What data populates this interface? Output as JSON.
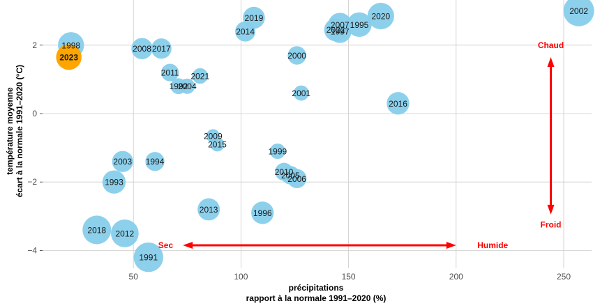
{
  "chart_data": {
    "type": "scatter",
    "x_label_lines": [
      "précipitations",
      "rapport à la normale 1991–2020 (%)"
    ],
    "y_label_lines": [
      "température moyenne",
      "écart à la normale 1991–2020 (°C)"
    ],
    "xlim": [
      0,
      260
    ],
    "ylim": [
      -4.5,
      3.3
    ],
    "x_ticks": [
      50,
      100,
      150,
      200,
      250
    ],
    "y_ticks": [
      -4,
      -2,
      0,
      2
    ],
    "tick_labels": {
      "x": [
        "50",
        "100",
        "150",
        "200",
        "250"
      ],
      "y": [
        "−4",
        "−2",
        "0",
        "2"
      ]
    },
    "grid": true,
    "colors": {
      "point": "#87ceeb",
      "highlight": "#ffa500",
      "highlight_label": "#ff0000",
      "annotation": "#ff0000",
      "grid": "#cccccc"
    },
    "points": [
      {
        "year": "1991",
        "x": 57,
        "y": -4.2
      },
      {
        "year": "1993",
        "x": 41,
        "y": -2.0
      },
      {
        "year": "1994",
        "x": 60,
        "y": -1.4
      },
      {
        "year": "1995",
        "x": 155,
        "y": 2.6
      },
      {
        "year": "1996",
        "x": 110,
        "y": -2.9
      },
      {
        "year": "1997",
        "x": 146,
        "y": 2.4
      },
      {
        "year": "1998",
        "x": 21,
        "y": 2.0
      },
      {
        "year": "1999",
        "x": 117,
        "y": -1.1
      },
      {
        "year": "2000",
        "x": 126,
        "y": 1.7
      },
      {
        "year": "2001",
        "x": 128,
        "y": 0.6
      },
      {
        "year": "2002",
        "x": 257,
        "y": 3.0
      },
      {
        "year": "2003",
        "x": 45,
        "y": -1.4
      },
      {
        "year": "2004",
        "x": 75,
        "y": 0.8
      },
      {
        "year": "2005",
        "x": 123,
        "y": -1.8
      },
      {
        "year": "2006",
        "x": 126,
        "y": -1.9
      },
      {
        "year": "2007",
        "x": 146,
        "y": 2.6
      },
      {
        "year": "2008",
        "x": 54,
        "y": 1.9
      },
      {
        "year": "2009",
        "x": 87,
        "y": -0.65
      },
      {
        "year": "2010",
        "x": 120,
        "y": -1.7
      },
      {
        "year": "2011",
        "x": 67,
        "y": 1.2
      },
      {
        "year": "2012",
        "x": 46,
        "y": -3.5
      },
      {
        "year": "2013",
        "x": 85,
        "y": -2.8
      },
      {
        "year": "2014",
        "x": 102,
        "y": 2.4
      },
      {
        "year": "2015",
        "x": 89,
        "y": -0.9
      },
      {
        "year": "2016",
        "x": 173,
        "y": 0.3
      },
      {
        "year": "2017",
        "x": 63,
        "y": 1.9
      },
      {
        "year": "2018",
        "x": 33,
        "y": -3.4
      },
      {
        "year": "2019",
        "x": 106,
        "y": 2.8
      },
      {
        "year": "2020",
        "x": 165,
        "y": 2.85
      },
      {
        "year": "2021",
        "x": 81,
        "y": 1.1
      },
      {
        "year": "2022",
        "x": 144,
        "y": 2.45
      },
      {
        "year": "1992",
        "x": 71,
        "y": 0.8
      },
      {
        "year": "2023",
        "x": 20,
        "y": 1.65,
        "highlight": true
      }
    ],
    "annotations": {
      "dry": "Sec",
      "wet": "Humide",
      "hot": "Chaud",
      "cold": "Froid"
    }
  }
}
